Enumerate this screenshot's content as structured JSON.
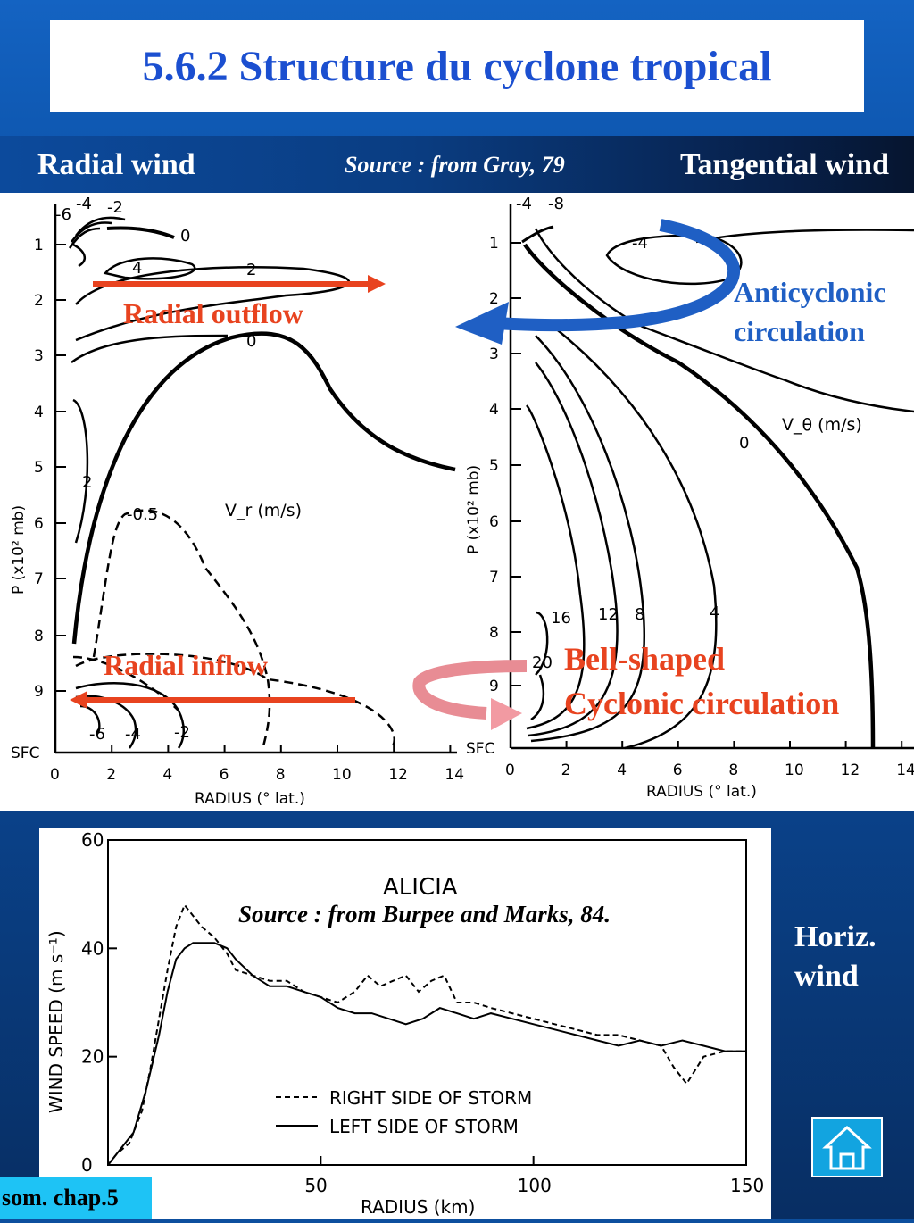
{
  "title": "5.6.2 Structure du cyclone tropical",
  "header": {
    "left_label": "Radial wind",
    "source": "Source : from Gray, 79",
    "right_label": "Tangential wind"
  },
  "annotations": {
    "radial_outflow": "Radial outflow",
    "radial_inflow": "Radial inflow",
    "anticyclonic_1": "Anticyclonic",
    "anticyclonic_2": "circulation",
    "bell_1": "Bell-shaped",
    "bell_2": "Cyclonic circulation"
  },
  "side_label_1": "Horiz.",
  "side_label_2": "wind",
  "chapter_link": "som. chap.5",
  "colors": {
    "title": "#1b4fd0",
    "annotation_red": "#e8431f",
    "annotation_blue": "#1f5fc4",
    "home_button": "#12a4e0"
  },
  "icons": {
    "home": "house-icon"
  },
  "chart_data": [
    {
      "type": "contour",
      "quantity_label": "V_r (m/s)",
      "xlabel": "RADIUS (° lat.)",
      "ylabel": "P (x10² mb)",
      "x_ticks": [
        "0",
        "2",
        "4",
        "6",
        "8",
        "10",
        "12",
        "14"
      ],
      "y_ticks": [
        "1",
        "2",
        "3",
        "4",
        "5",
        "6",
        "7",
        "8",
        "9",
        "SFC"
      ],
      "xlim": [
        0,
        14
      ],
      "ylim": [
        0.3,
        10
      ],
      "contour_labels": [
        "-6",
        "-4",
        "-2",
        "0",
        "4",
        "2",
        "0",
        "2",
        "-0.5",
        "-6",
        "-4",
        "-2"
      ]
    },
    {
      "type": "contour",
      "quantity_label": "V_θ (m/s)",
      "xlabel": "RADIUS (° lat.)",
      "ylabel": "P (x10² mb)",
      "x_ticks": [
        "0",
        "2",
        "4",
        "6",
        "8",
        "10",
        "12",
        "14"
      ],
      "y_ticks": [
        "1",
        "2",
        "3",
        "4",
        "5",
        "6",
        "7",
        "8",
        "9",
        "SFC"
      ],
      "xlim": [
        0,
        14
      ],
      "ylim": [
        0.3,
        10
      ],
      "contour_labels": [
        "-4",
        "-8",
        "-4",
        "0",
        "4",
        "8",
        "12",
        "16",
        "20"
      ]
    },
    {
      "type": "line",
      "title": "ALICIA",
      "source": "Source : from Burpee and Marks, 84.",
      "xlabel": "RADIUS (km)",
      "ylabel": "WIND SPEED (m s⁻¹)",
      "xlim": [
        0,
        150
      ],
      "ylim": [
        0,
        60
      ],
      "x_ticks": [
        0,
        50,
        100,
        150
      ],
      "y_ticks": [
        0,
        20,
        40,
        60
      ],
      "series": [
        {
          "name": "RIGHT SIDE OF STORM",
          "style": "dashed",
          "x": [
            0,
            2,
            5,
            8,
            10,
            12,
            14,
            16,
            18,
            20,
            22,
            25,
            28,
            30,
            34,
            38,
            42,
            46,
            50,
            54,
            58,
            61,
            64,
            67,
            70,
            73,
            76,
            79,
            82,
            86,
            90,
            95,
            100,
            105,
            110,
            115,
            120,
            125,
            130,
            133,
            136,
            140,
            145,
            150
          ],
          "y": [
            0,
            2,
            4,
            10,
            18,
            27,
            36,
            44,
            48,
            46,
            44,
            42,
            39,
            36,
            35,
            34,
            34,
            32,
            31,
            30,
            32,
            35,
            33,
            34,
            35,
            32,
            34,
            35,
            30,
            30,
            29,
            28,
            27,
            26,
            25,
            24,
            24,
            23,
            22,
            18,
            15,
            20,
            21,
            21
          ]
        },
        {
          "name": "LEFT SIDE OF STORM",
          "style": "solid",
          "x": [
            0,
            3,
            6,
            9,
            12,
            14,
            16,
            18,
            20,
            22,
            25,
            28,
            30,
            34,
            38,
            42,
            46,
            50,
            54,
            58,
            62,
            66,
            70,
            74,
            78,
            82,
            86,
            90,
            95,
            100,
            105,
            110,
            115,
            120,
            125,
            130,
            135,
            140,
            145,
            150
          ],
          "y": [
            0,
            3,
            6,
            14,
            24,
            32,
            38,
            40,
            41,
            41,
            41,
            40,
            38,
            35,
            33,
            33,
            32,
            31,
            29,
            28,
            28,
            27,
            26,
            27,
            29,
            28,
            27,
            28,
            27,
            26,
            25,
            24,
            23,
            22,
            23,
            22,
            23,
            22,
            21,
            21
          ]
        }
      ]
    }
  ]
}
